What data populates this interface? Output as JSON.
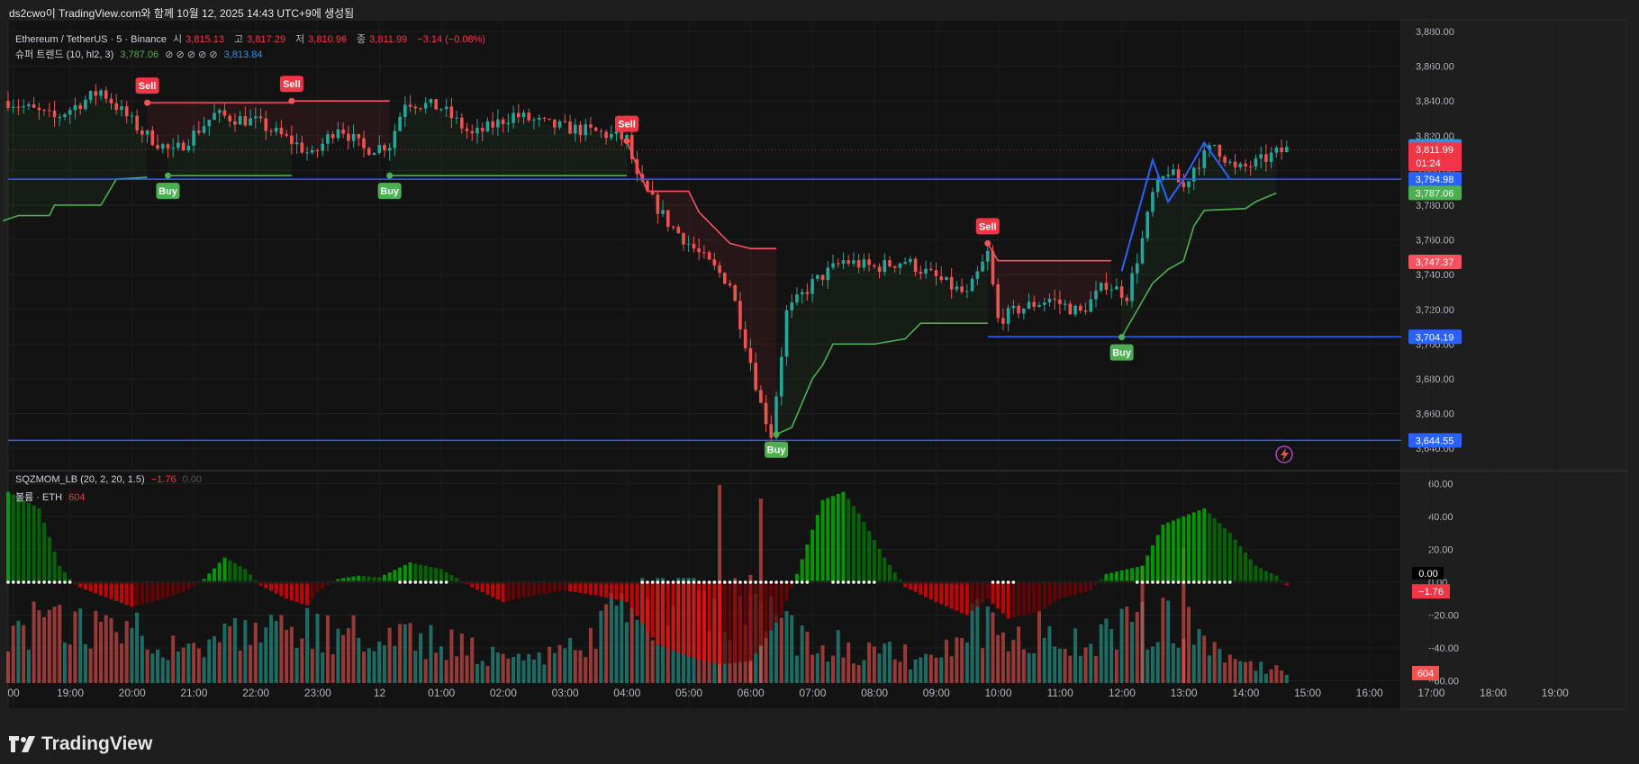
{
  "header": {
    "caption": "ds2cwo이 TradingView.com와 함께 10월 12, 2025 14:43 UTC+9에 생성됨"
  },
  "legend": {
    "symbol": "Ethereum / TetherUS · 5 · Binance",
    "open_label": "시",
    "open": "3,815.13",
    "high_label": "고",
    "high": "3,817.29",
    "low_label": "저",
    "low": "3,810.96",
    "close_label": "종",
    "close": "3,811.99",
    "change": "−3.14 (−0.08%)",
    "supertrend_label": "슈퍼 트렌드 (10, hl2, 3)",
    "supertrend_up": "3,787.06",
    "supertrend_icons": "⊘ ⊘ ⊘ ⊘ ⊘",
    "supertrend_last": "3,813.84",
    "sqz_label": "SQZMOM_LB (20, 2, 20, 1.5)",
    "sqz_value": "−1.76",
    "sqz_zero": "0.00",
    "volume_label": "볼륨 · ETH",
    "volume_value": "604"
  },
  "brand": {
    "name": "TradingView"
  },
  "colors": {
    "up": "#26a69a",
    "down": "#ef5350",
    "st_up": "#4caf50",
    "st_down": "#f7525f",
    "hline": "#2962ff",
    "bg": "#131313"
  },
  "chart_data": {
    "type": "candlestick",
    "timeframe": "5",
    "price_axis": {
      "ticks": [
        "3,880.00",
        "3,860.00",
        "3,840.00",
        "3,820.00",
        "3,800.00",
        "3,780.00",
        "3,760.00",
        "3,740.00",
        "3,720.00",
        "3,700.00",
        "3,680.00",
        "3,660.00",
        "3,640.00"
      ],
      "ylim": [
        3636,
        3882
      ]
    },
    "time_axis": [
      "00",
      "19:00",
      "20:00",
      "21:00",
      "22:00",
      "23:00",
      "12",
      "01:00",
      "02:00",
      "03:00",
      "04:00",
      "05:00",
      "06:00",
      "07:00",
      "08:00",
      "09:00",
      "10:00",
      "11:00",
      "12:00",
      "13:00",
      "14:00",
      "15:00",
      "16:00",
      "17:00",
      "18:00",
      "19:00"
    ],
    "close_path": [
      {
        "t": "18:00",
        "p": 3840
      },
      {
        "t": "18:45",
        "p": 3830
      },
      {
        "t": "19:30",
        "p": 3846
      },
      {
        "t": "20:10",
        "p": 3822
      },
      {
        "t": "20:40",
        "p": 3810
      },
      {
        "t": "21:20",
        "p": 3832
      },
      {
        "t": "22:00",
        "p": 3828
      },
      {
        "t": "22:40",
        "p": 3815
      },
      {
        "t": "22:55",
        "p": 3808
      },
      {
        "t": "23:20",
        "p": 3826
      },
      {
        "t": "23:45",
        "p": 3812
      },
      {
        "t": "00:10",
        "p": 3815
      },
      {
        "t": "00:25",
        "p": 3840
      },
      {
        "t": "01:00",
        "p": 3836
      },
      {
        "t": "01:30",
        "p": 3820
      },
      {
        "t": "02:10",
        "p": 3832
      },
      {
        "t": "02:45",
        "p": 3826
      },
      {
        "t": "03:30",
        "p": 3822
      },
      {
        "t": "04:00",
        "p": 3818
      },
      {
        "t": "04:10",
        "p": 3795
      },
      {
        "t": "04:40",
        "p": 3770
      },
      {
        "t": "05:10",
        "p": 3752
      },
      {
        "t": "05:40",
        "p": 3735
      },
      {
        "t": "06:00",
        "p": 3690
      },
      {
        "t": "06:10",
        "p": 3665
      },
      {
        "t": "06:20",
        "p": 3648
      },
      {
        "t": "06:35",
        "p": 3718
      },
      {
        "t": "07:00",
        "p": 3735
      },
      {
        "t": "07:30",
        "p": 3748
      },
      {
        "t": "08:00",
        "p": 3744
      },
      {
        "t": "08:30",
        "p": 3748
      },
      {
        "t": "09:00",
        "p": 3738
      },
      {
        "t": "09:30",
        "p": 3728
      },
      {
        "t": "09:50",
        "p": 3752
      },
      {
        "t": "10:00",
        "p": 3714
      },
      {
        "t": "10:20",
        "p": 3720
      },
      {
        "t": "10:50",
        "p": 3726
      },
      {
        "t": "11:20",
        "p": 3718
      },
      {
        "t": "11:45",
        "p": 3735
      },
      {
        "t": "12:05",
        "p": 3728
      },
      {
        "t": "12:20",
        "p": 3760
      },
      {
        "t": "12:30",
        "p": 3786
      },
      {
        "t": "12:45",
        "p": 3800
      },
      {
        "t": "13:00",
        "p": 3790
      },
      {
        "t": "13:10",
        "p": 3802
      },
      {
        "t": "13:30",
        "p": 3815
      },
      {
        "t": "13:50",
        "p": 3800
      },
      {
        "t": "14:10",
        "p": 3804
      },
      {
        "t": "14:30",
        "p": 3810
      },
      {
        "t": "14:40",
        "p": 3812
      }
    ],
    "supertrend": [
      {
        "dir": "up",
        "points": [
          {
            "t": "17:55",
            "p": 3771
          },
          {
            "t": "18:10",
            "p": 3774
          },
          {
            "t": "18:40",
            "p": 3774
          },
          {
            "t": "18:45",
            "p": 3780
          },
          {
            "t": "19:30",
            "p": 3780
          },
          {
            "t": "19:45",
            "p": 3795
          },
          {
            "t": "20:15",
            "p": 3796
          }
        ]
      },
      {
        "dir": "down",
        "points": [
          {
            "t": "20:15",
            "p": 3839
          },
          {
            "t": "22:35",
            "p": 3839
          }
        ]
      },
      {
        "dir": "up",
        "points": [
          {
            "t": "20:35",
            "p": 3797
          },
          {
            "t": "22:35",
            "p": 3797
          }
        ]
      },
      {
        "dir": "down",
        "points": [
          {
            "t": "22:35",
            "p": 3840
          },
          {
            "t": "00:10",
            "p": 3840
          }
        ]
      },
      {
        "dir": "up",
        "points": [
          {
            "t": "00:10",
            "p": 3797
          },
          {
            "t": "04:00",
            "p": 3797
          }
        ]
      },
      {
        "dir": "down",
        "points": [
          {
            "t": "04:00",
            "p": 3817
          },
          {
            "t": "04:20",
            "p": 3788
          },
          {
            "t": "05:00",
            "p": 3788
          },
          {
            "t": "05:10",
            "p": 3776
          },
          {
            "t": "05:40",
            "p": 3758
          },
          {
            "t": "06:00",
            "p": 3755
          },
          {
            "t": "06:25",
            "p": 3755
          }
        ]
      },
      {
        "dir": "up",
        "points": [
          {
            "t": "06:25",
            "p": 3648
          },
          {
            "t": "06:40",
            "p": 3652
          },
          {
            "t": "07:00",
            "p": 3680
          },
          {
            "t": "07:10",
            "p": 3688
          },
          {
            "t": "07:20",
            "p": 3700
          },
          {
            "t": "08:00",
            "p": 3700
          },
          {
            "t": "08:30",
            "p": 3703
          },
          {
            "t": "08:45",
            "p": 3712
          },
          {
            "t": "09:50",
            "p": 3712
          }
        ]
      },
      {
        "dir": "down",
        "points": [
          {
            "t": "09:50",
            "p": 3758
          },
          {
            "t": "10:00",
            "p": 3748
          },
          {
            "t": "11:50",
            "p": 3748
          }
        ]
      },
      {
        "dir": "up",
        "points": [
          {
            "t": "12:00",
            "p": 3704
          },
          {
            "t": "12:30",
            "p": 3735
          },
          {
            "t": "12:45",
            "p": 3743
          },
          {
            "t": "13:00",
            "p": 3748
          },
          {
            "t": "13:10",
            "p": 3768
          },
          {
            "t": "13:20",
            "p": 3777
          },
          {
            "t": "14:00",
            "p": 3778
          },
          {
            "t": "14:10",
            "p": 3782
          },
          {
            "t": "14:30",
            "p": 3787
          }
        ]
      }
    ],
    "signals": [
      {
        "type": "Sell",
        "t": "20:15",
        "p": 3839
      },
      {
        "type": "Buy",
        "t": "20:35",
        "p": 3797
      },
      {
        "type": "Sell",
        "t": "22:35",
        "p": 3840
      },
      {
        "type": "Buy",
        "t": "00:10",
        "p": 3797
      },
      {
        "type": "Sell",
        "t": "04:00",
        "p": 3817
      },
      {
        "type": "Buy",
        "t": "06:25",
        "p": 3648
      },
      {
        "type": "Sell",
        "t": "09:50",
        "p": 3758
      },
      {
        "type": "Buy",
        "t": "12:00",
        "p": 3704
      }
    ],
    "horizontal_lines": [
      {
        "p": 3794.98,
        "label": "3,794.98",
        "t_start": "18:00"
      },
      {
        "p": 3704.19,
        "label": "3,704.19",
        "t_start": "09:50"
      },
      {
        "p": 3644.55,
        "label": "3,644.55",
        "t_start": "18:00"
      }
    ],
    "price_labels": [
      {
        "p": 3813.84,
        "text": "3,813.84",
        "color": "#2196f3"
      },
      {
        "p": 3811.99,
        "text": "3,811.99",
        "sub": "01:24",
        "color": "#f23645"
      },
      {
        "p": 3794.98,
        "text": "3,794.98",
        "color": "#2962ff"
      },
      {
        "p": 3787.06,
        "text": "3,787.06",
        "color": "#4caf50"
      },
      {
        "p": 3747.37,
        "text": "3,747.37",
        "color": "#f7525f"
      },
      {
        "p": 3704.19,
        "text": "3,704.19",
        "color": "#2962ff"
      },
      {
        "p": 3644.55,
        "text": "3,644.55",
        "color": "#2962ff"
      }
    ],
    "zigzag": [
      {
        "t": "12:00",
        "p": 3742
      },
      {
        "t": "12:30",
        "p": 3806
      },
      {
        "t": "12:45",
        "p": 3782
      },
      {
        "t": "13:00",
        "p": 3795
      },
      {
        "t": "13:20",
        "p": 3816
      },
      {
        "t": "13:45",
        "p": 3795
      }
    ],
    "squeeze_momentum": {
      "ticks": [
        "60.00",
        "40.00",
        "20.00",
        "0.00",
        "−20.00",
        "−40.00",
        "−60.00"
      ],
      "ylim": [
        -62,
        62
      ],
      "current": -1.76,
      "profile": [
        {
          "t": "18:00",
          "v": 55
        },
        {
          "t": "18:30",
          "v": 45
        },
        {
          "t": "18:50",
          "v": 10
        },
        {
          "t": "19:05",
          "v": -2
        },
        {
          "t": "19:30",
          "v": -8
        },
        {
          "t": "20:00",
          "v": -15
        },
        {
          "t": "20:20",
          "v": -12
        },
        {
          "t": "20:50",
          "v": -6
        },
        {
          "t": "21:10",
          "v": 2
        },
        {
          "t": "21:30",
          "v": 15
        },
        {
          "t": "21:50",
          "v": 8
        },
        {
          "t": "22:05",
          "v": -2
        },
        {
          "t": "22:30",
          "v": -10
        },
        {
          "t": "22:50",
          "v": -14
        },
        {
          "t": "23:00",
          "v": -6
        },
        {
          "t": "23:20",
          "v": 2
        },
        {
          "t": "23:40",
          "v": 4
        },
        {
          "t": "00:00",
          "v": 3
        },
        {
          "t": "00:30",
          "v": 12
        },
        {
          "t": "01:00",
          "v": 8
        },
        {
          "t": "01:30",
          "v": -3
        },
        {
          "t": "02:00",
          "v": -12
        },
        {
          "t": "02:30",
          "v": -8
        },
        {
          "t": "03:00",
          "v": -5
        },
        {
          "t": "03:30",
          "v": -8
        },
        {
          "t": "04:00",
          "v": -12
        },
        {
          "t": "04:30",
          "v": -38
        },
        {
          "t": "05:00",
          "v": -45
        },
        {
          "t": "05:30",
          "v": -50
        },
        {
          "t": "06:00",
          "v": -48
        },
        {
          "t": "06:30",
          "v": -20
        },
        {
          "t": "06:45",
          "v": 5
        },
        {
          "t": "07:10",
          "v": 50
        },
        {
          "t": "07:30",
          "v": 55
        },
        {
          "t": "07:45",
          "v": 42
        },
        {
          "t": "08:10",
          "v": 15
        },
        {
          "t": "08:30",
          "v": -3
        },
        {
          "t": "09:00",
          "v": -12
        },
        {
          "t": "09:30",
          "v": -20
        },
        {
          "t": "09:50",
          "v": -10
        },
        {
          "t": "10:10",
          "v": -22
        },
        {
          "t": "10:40",
          "v": -18
        },
        {
          "t": "11:00",
          "v": -10
        },
        {
          "t": "11:30",
          "v": -5
        },
        {
          "t": "11:45",
          "v": 5
        },
        {
          "t": "12:20",
          "v": 10
        },
        {
          "t": "12:40",
          "v": 35
        },
        {
          "t": "13:00",
          "v": 40
        },
        {
          "t": "13:20",
          "v": 45
        },
        {
          "t": "13:45",
          "v": 30
        },
        {
          "t": "14:10",
          "v": 10
        },
        {
          "t": "14:30",
          "v": 4
        },
        {
          "t": "14:40",
          "v": -2
        }
      ],
      "squeeze_on_ranges": [
        [
          "18:00",
          "19:00"
        ],
        [
          "00:15",
          "01:05"
        ],
        [
          "04:10",
          "06:55"
        ],
        [
          "07:15",
          "08:00"
        ],
        [
          "09:50",
          "10:15"
        ],
        [
          "12:10",
          "13:45"
        ]
      ]
    },
    "volume": {
      "last": 604,
      "profile": [
        {
          "t": "18:00",
          "v": 0.6
        },
        {
          "t": "19:00",
          "v": 0.5
        },
        {
          "t": "20:00",
          "v": 0.55
        },
        {
          "t": "21:00",
          "v": 0.35
        },
        {
          "t": "22:00",
          "v": 0.45
        },
        {
          "t": "23:00",
          "v": 0.5
        },
        {
          "t": "00:00",
          "v": 0.4
        },
        {
          "t": "01:00",
          "v": 0.4
        },
        {
          "t": "02:00",
          "v": 0.25
        },
        {
          "t": "03:00",
          "v": 0.25
        },
        {
          "t": "04:00",
          "v": 0.7
        },
        {
          "t": "05:00",
          "v": 0.9
        },
        {
          "t": "06:00",
          "v": 0.75
        },
        {
          "t": "07:00",
          "v": 0.4
        },
        {
          "t": "08:00",
          "v": 0.3
        },
        {
          "t": "09:00",
          "v": 0.2
        },
        {
          "t": "09:45",
          "v": 0.6
        },
        {
          "t": "10:30",
          "v": 0.5
        },
        {
          "t": "11:30",
          "v": 0.35
        },
        {
          "t": "12:00",
          "v": 0.55
        },
        {
          "t": "13:00",
          "v": 0.6
        },
        {
          "t": "13:30",
          "v": 0.35
        },
        {
          "t": "14:00",
          "v": 0.15
        },
        {
          "t": "14:40",
          "v": 0.12
        }
      ]
    }
  }
}
